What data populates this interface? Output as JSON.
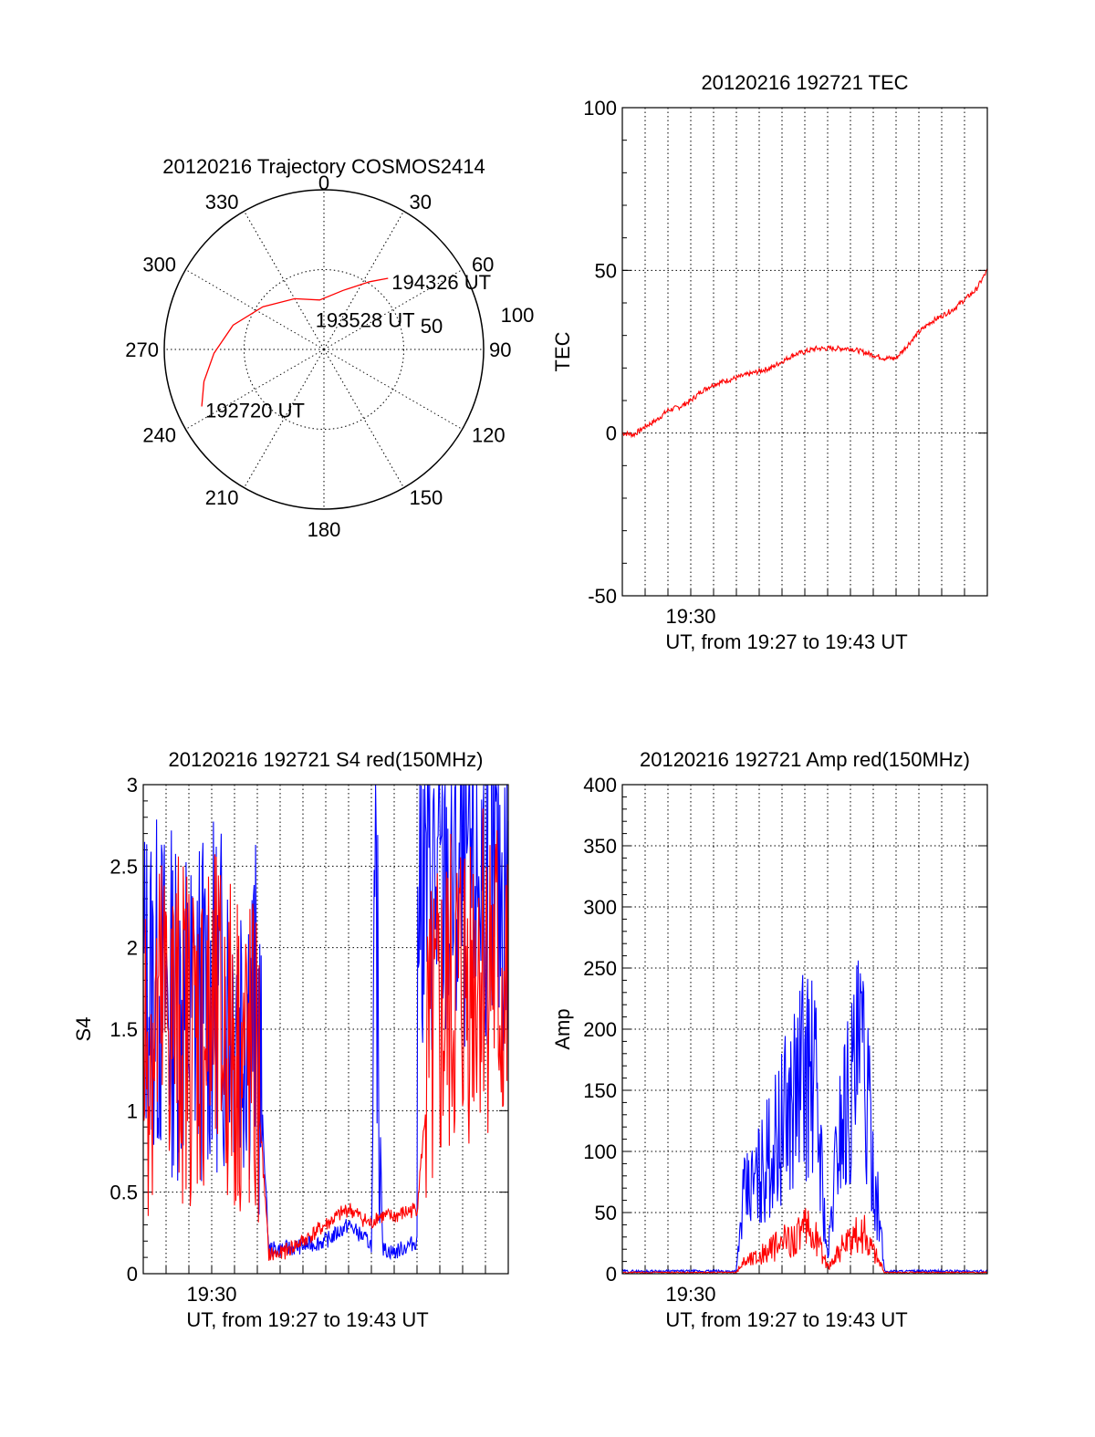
{
  "colors": {
    "red": "#ff0000",
    "blue": "#0000ff",
    "axis": "#000000",
    "grid": "#000000"
  },
  "chart_data": [
    {
      "id": "trajectory",
      "type": "polar",
      "title": "20120216 Trajectory COSMOS2414",
      "azimuth_labels": [
        "0",
        "30",
        "60",
        "90",
        "120",
        "150",
        "180",
        "210",
        "240",
        "270",
        "300",
        "330"
      ],
      "elevation_labels": [
        "50",
        "100"
      ],
      "trajectory": [
        {
          "az": 245,
          "el": 14
        },
        {
          "az": 255,
          "el": 20
        },
        {
          "az": 268,
          "el": 28
        },
        {
          "az": 285,
          "el": 37
        },
        {
          "az": 305,
          "el": 48
        },
        {
          "az": 330,
          "el": 57
        },
        {
          "az": 355,
          "el": 62
        },
        {
          "az": 18,
          "el": 55
        },
        {
          "az": 34,
          "el": 44
        },
        {
          "az": 42,
          "el": 36
        }
      ],
      "time_labels": [
        {
          "text": "192720 UT",
          "az": 245,
          "el": 14
        },
        {
          "text": "193528 UT",
          "az": 340,
          "el": 70
        },
        {
          "text": "194326 UT",
          "az": 42,
          "el": 36
        }
      ]
    },
    {
      "id": "tec",
      "type": "line",
      "title": "20120216 192721 TEC",
      "ylabel": "TEC",
      "xlabel": "UT, from 19:27 to 19:43 UT",
      "xtick_label": "19:30",
      "ylim": [
        -50,
        100
      ],
      "yticks": [
        "-50",
        "0",
        "50",
        "100"
      ],
      "grid": true,
      "series": [
        {
          "color": "red",
          "x": [
            0,
            0.5,
            1,
            1.5,
            2,
            2.5,
            3,
            3.5,
            4,
            4.5,
            5,
            5.5,
            6,
            6.5,
            7,
            7.5,
            8,
            8.5,
            9,
            9.5,
            10,
            10.5,
            11,
            11.5,
            12,
            12.5,
            13,
            13.5,
            14,
            14.5,
            15,
            15.5,
            16
          ],
          "y": [
            0,
            -0.5,
            2,
            4,
            7,
            8,
            10,
            13,
            15,
            16,
            17,
            18,
            19,
            20,
            22,
            24,
            25,
            26,
            26,
            26,
            26,
            25,
            24,
            23,
            23,
            27,
            31,
            34,
            36,
            38,
            41,
            44,
            50
          ]
        }
      ]
    },
    {
      "id": "s4",
      "type": "line",
      "title": "20120216 192721 S4 red(150MHz)",
      "ylabel": "S4",
      "xlabel": "UT, from 19:27 to 19:43 UT",
      "xtick_label": "19:30",
      "ylim": [
        0,
        3
      ],
      "yticks": [
        "0",
        "0.5",
        "1",
        "1.5",
        "2",
        "2.5",
        "3"
      ],
      "grid": true,
      "series": [
        {
          "color": "blue",
          "x": [
            0,
            1,
            2,
            3,
            4,
            5,
            5.5,
            6,
            7,
            8,
            9,
            10,
            10.2,
            10.5,
            11,
            12,
            12,
            13,
            14,
            15,
            16
          ],
          "y": [
            1.8,
            1.7,
            1.6,
            1.7,
            1.7,
            1.6,
            0.15,
            0.15,
            0.17,
            0.2,
            0.3,
            0.18,
            2.2,
            0.15,
            0.13,
            0.2,
            2.5,
            2.3,
            2.4,
            2.5,
            2.3
          ]
        },
        {
          "color": "red",
          "x": [
            0,
            1,
            2,
            3,
            4,
            5,
            5.5,
            6,
            7,
            8,
            9,
            10,
            10.2,
            10.5,
            11,
            12,
            12.5,
            13,
            14,
            15,
            16
          ],
          "y": [
            1.4,
            1.6,
            1.5,
            1.5,
            1.4,
            1.2,
            0.12,
            0.12,
            0.2,
            0.3,
            0.4,
            0.3,
            0.35,
            0.35,
            0.35,
            0.4,
            1.2,
            1.5,
            1.8,
            2.0,
            1.6
          ]
        }
      ]
    },
    {
      "id": "amp",
      "type": "line",
      "title": "20120216 192721 Amp red(150MHz)",
      "ylabel": "Amp",
      "xlabel": "UT, from 19:27 to 19:43 UT",
      "xtick_label": "19:30",
      "ylim": [
        0,
        400
      ],
      "yticks": [
        "0",
        "50",
        "100",
        "150",
        "200",
        "250",
        "300",
        "350",
        "400"
      ],
      "grid": true,
      "series": [
        {
          "color": "blue",
          "x": [
            0,
            1,
            2,
            3,
            4,
            5,
            5.3,
            6,
            7,
            8,
            8.5,
            9,
            9.5,
            10,
            10.5,
            11,
            11.5,
            12,
            13,
            14,
            15,
            16
          ],
          "y": [
            2,
            2,
            2,
            2,
            2,
            2,
            60,
            80,
            120,
            170,
            150,
            10,
            120,
            150,
            180,
            90,
            2,
            2,
            2,
            2,
            2,
            2
          ]
        },
        {
          "color": "red",
          "x": [
            0,
            1,
            2,
            3,
            4,
            5,
            5.3,
            6,
            7,
            8,
            8.5,
            9,
            9.5,
            10,
            10.5,
            11,
            11.5,
            12,
            13,
            14,
            15,
            16
          ],
          "y": [
            1,
            1,
            1,
            1,
            1,
            1,
            10,
            15,
            25,
            35,
            30,
            5,
            20,
            25,
            35,
            20,
            1,
            1,
            1,
            1,
            1,
            1
          ]
        }
      ]
    }
  ]
}
